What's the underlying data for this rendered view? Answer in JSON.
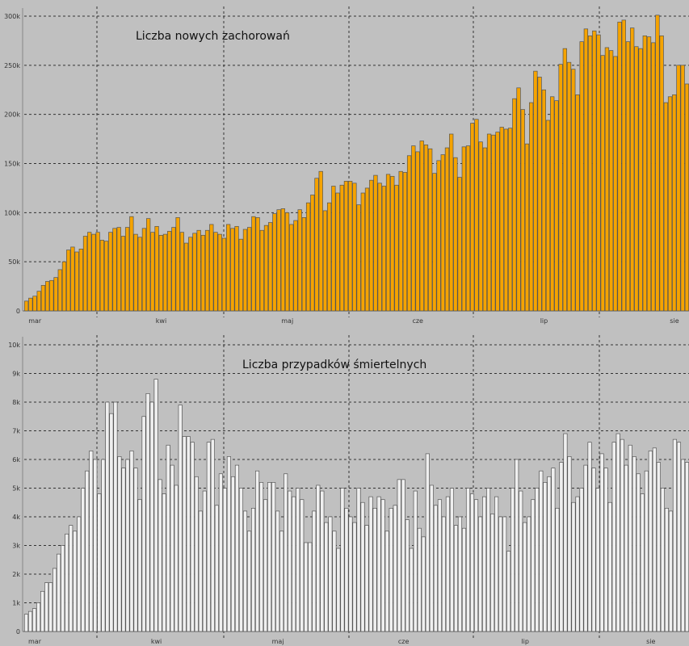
{
  "chart_data": [
    {
      "type": "bar",
      "title": "Liczba nowych zachorowań",
      "xlabel": "",
      "ylabel": "",
      "ylim": [
        0,
        300000
      ],
      "yticks": [
        {
          "value": 0,
          "label": "0"
        },
        {
          "value": 50000,
          "label": "50k"
        },
        {
          "value": 100000,
          "label": "100k"
        },
        {
          "value": 150000,
          "label": "150k"
        },
        {
          "value": 200000,
          "label": "200k"
        },
        {
          "value": 250000,
          "label": "250k"
        },
        {
          "value": 300000,
          "label": "300k"
        }
      ],
      "month_labels": [
        {
          "label": "mar",
          "index": 1
        },
        {
          "label": "kwi",
          "index": 31
        },
        {
          "label": "maj",
          "index": 61
        },
        {
          "label": "cze",
          "index": 92
        },
        {
          "label": "lip",
          "index": 122
        },
        {
          "label": "sie",
          "index": 153
        }
      ],
      "grid": true,
      "bar_color": "#f5a300",
      "values": [
        10000,
        13000,
        15000,
        20000,
        26000,
        30000,
        31000,
        34000,
        42000,
        50000,
        62000,
        65000,
        60000,
        63000,
        76000,
        80000,
        78000,
        80000,
        72000,
        71000,
        80000,
        84000,
        85000,
        76000,
        85000,
        96000,
        78000,
        75000,
        84000,
        94000,
        80000,
        86000,
        77000,
        78000,
        81000,
        85000,
        95000,
        80000,
        69000,
        75000,
        79000,
        82000,
        77000,
        82000,
        88000,
        80000,
        78000,
        74000,
        88000,
        84000,
        86000,
        73000,
        83000,
        85000,
        96000,
        95000,
        82000,
        87000,
        90000,
        99000,
        103000,
        104000,
        100000,
        88000,
        92000,
        103000,
        95000,
        110000,
        118000,
        135000,
        142000,
        102000,
        110000,
        127000,
        120000,
        128000,
        132000,
        132000,
        130000,
        108000,
        120000,
        125000,
        133000,
        138000,
        130000,
        127000,
        139000,
        137000,
        128000,
        142000,
        141000,
        158000,
        168000,
        162000,
        173000,
        169000,
        165000,
        140000,
        153000,
        159000,
        166000,
        180000,
        156000,
        136000,
        167000,
        168000,
        191000,
        195000,
        172000,
        166000,
        180000,
        179000,
        182000,
        187000,
        185000,
        186000,
        216000,
        227000,
        205000,
        170000,
        212000,
        244000,
        238000,
        225000,
        194000,
        218000,
        214000,
        251000,
        267000,
        253000,
        246000,
        220000,
        274000,
        287000,
        280000,
        285000,
        281000,
        260000,
        268000,
        265000,
        259000,
        294000,
        296000,
        274000,
        288000,
        269000,
        267000,
        280000,
        279000,
        273000,
        301000,
        280000,
        212000,
        218000,
        220000,
        250000,
        250000,
        231000
      ],
      "label_values": [
        {
          "label": "0",
          "value": 0
        }
      ]
    },
    {
      "type": "bar",
      "title": "Liczba przypadków śmiertelnych",
      "xlabel": "",
      "ylabel": "",
      "ylim": [
        0,
        10000
      ],
      "yticks": [
        {
          "value": 0,
          "label": "0"
        },
        {
          "value": 1000,
          "label": "1k"
        },
        {
          "value": 2000,
          "label": "2k"
        },
        {
          "value": 3000,
          "label": "3k"
        },
        {
          "value": 4000,
          "label": "4k"
        },
        {
          "value": 5000,
          "label": "5k"
        },
        {
          "value": 6000,
          "label": "6k"
        },
        {
          "value": 7000,
          "label": "7k"
        },
        {
          "value": 8000,
          "label": "8k"
        },
        {
          "value": 9000,
          "label": "9k"
        },
        {
          "value": 10000,
          "label": "10k"
        }
      ],
      "month_labels": [
        {
          "label": "mar",
          "index": 1
        },
        {
          "label": "kwi",
          "index": 31
        },
        {
          "label": "maj",
          "index": 61
        },
        {
          "label": "cze",
          "index": 92
        },
        {
          "label": "lip",
          "index": 122
        },
        {
          "label": "sie",
          "index": 153
        }
      ],
      "grid": true,
      "bar_color": "#efefef",
      "values": [
        600,
        700,
        800,
        1000,
        1400,
        1700,
        1700,
        2200,
        2700,
        3000,
        3400,
        3700,
        3500,
        4000,
        5000,
        5600,
        6300,
        6000,
        4800,
        6000,
        8000,
        7600,
        8000,
        6100,
        5700,
        6000,
        6300,
        5700,
        4600,
        7500,
        8300,
        8000,
        8800,
        5300,
        4800,
        6500,
        5800,
        5100,
        7900,
        6800,
        6800,
        6600,
        5400,
        4200,
        4900,
        6600,
        6700,
        4400,
        5500,
        5000,
        6100,
        5400,
        5800,
        5000,
        4200,
        3500,
        4300,
        5600,
        5200,
        4600,
        5200,
        5200,
        4200,
        3500,
        5500,
        4900,
        4700,
        5000,
        4600,
        3100,
        3100,
        4200,
        5100,
        4900,
        3800,
        4000,
        3500,
        2900,
        5000,
        4300,
        4000,
        3800,
        5000,
        4500,
        3700,
        4700,
        4300,
        4700,
        4600,
        3500,
        4300,
        4400,
        5300,
        5300,
        3900,
        2900,
        4900,
        3600,
        3300,
        6200,
        5100,
        4400,
        4600,
        4000,
        4700,
        5000,
        3700,
        4000,
        3600,
        5000,
        4800,
        4600,
        4000,
        4700,
        5000,
        4100,
        4700,
        4000,
        4000,
        2800,
        5000,
        6000,
        4900,
        3800,
        4000,
        4600,
        5000,
        5600,
        5200,
        5400,
        5700,
        4300,
        5900,
        6900,
        6100,
        4500,
        4700,
        5000,
        5800,
        6600,
        5700,
        5000,
        6200,
        5700,
        4500,
        6600,
        6900,
        6700,
        5800,
        6500,
        6100,
        5500,
        4800,
        5600,
        6300,
        6400,
        5900,
        5000,
        4300,
        4200,
        6700,
        6600,
        6000,
        5900
      ],
      "label_values": []
    }
  ]
}
